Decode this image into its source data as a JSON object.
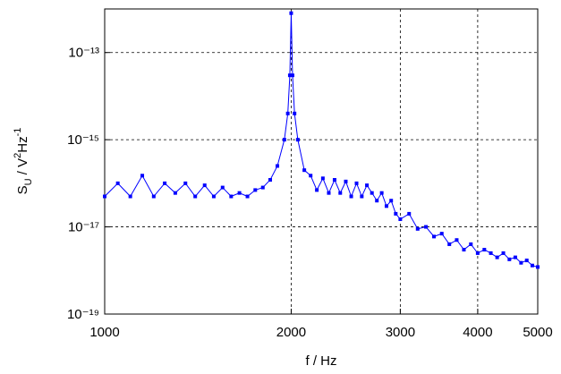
{
  "chart_data": {
    "type": "line",
    "xlabel": "f / Hz",
    "ylabel": [
      {
        "text": "S"
      },
      {
        "text": "U",
        "shift": "sub"
      },
      {
        "text": " / V"
      },
      {
        "text": "2",
        "shift": "sup"
      },
      {
        "text": "Hz"
      },
      {
        "text": "-1",
        "shift": "sup"
      }
    ],
    "xscale": "log",
    "yscale": "log",
    "grid": true,
    "xlim": [
      1000,
      5000
    ],
    "ylim": [
      1e-19,
      1e-12
    ],
    "xticks": [
      1000,
      2000,
      3000,
      4000,
      5000
    ],
    "yticks": [
      {
        "value": 1e-19,
        "label": "10⁻¹⁹"
      },
      {
        "value": 1e-17,
        "label": "10⁻¹⁷"
      },
      {
        "value": 1e-15,
        "label": "10⁻¹⁵"
      },
      {
        "value": 1e-13,
        "label": "10⁻¹³"
      }
    ],
    "x": [
      1000,
      1050,
      1100,
      1150,
      1200,
      1250,
      1300,
      1350,
      1400,
      1450,
      1500,
      1550,
      1600,
      1650,
      1700,
      1750,
      1800,
      1850,
      1900,
      1950,
      1975,
      1990,
      2000,
      2010,
      2025,
      2050,
      2100,
      2150,
      2200,
      2250,
      2300,
      2350,
      2400,
      2450,
      2500,
      2550,
      2600,
      2650,
      2700,
      2750,
      2800,
      2850,
      2900,
      2950,
      3000,
      3100,
      3200,
      3300,
      3400,
      3500,
      3600,
      3700,
      3800,
      3900,
      4000,
      4100,
      4200,
      4300,
      4400,
      4500,
      4600,
      4700,
      4800,
      4900,
      5000
    ],
    "series": [
      {
        "color": "#0000ff",
        "values": [
          5e-17,
          1e-16,
          5e-17,
          1.5e-16,
          5e-17,
          1e-16,
          6e-17,
          1e-16,
          5e-17,
          9e-17,
          5e-17,
          8e-17,
          5e-17,
          6e-17,
          5e-17,
          7e-17,
          8e-17,
          1.2e-16,
          2.5e-16,
          1e-15,
          4e-15,
          3e-14,
          8e-13,
          3e-14,
          4e-15,
          1e-15,
          2e-16,
          1.5e-16,
          7e-17,
          1.3e-16,
          6e-17,
          1.2e-16,
          6e-17,
          1.1e-16,
          5e-17,
          1e-16,
          5e-17,
          9e-17,
          6e-17,
          4e-17,
          6e-17,
          3e-17,
          4e-17,
          2e-17,
          1.5e-17,
          2e-17,
          9e-18,
          1e-17,
          6e-18,
          7e-18,
          4e-18,
          5e-18,
          3e-18,
          4e-18,
          2.5e-18,
          3e-18,
          2.5e-18,
          2e-18,
          2.5e-18,
          1.8e-18,
          2e-18,
          1.5e-18,
          1.7e-18,
          1.3e-18,
          1.2e-18
        ]
      }
    ]
  }
}
